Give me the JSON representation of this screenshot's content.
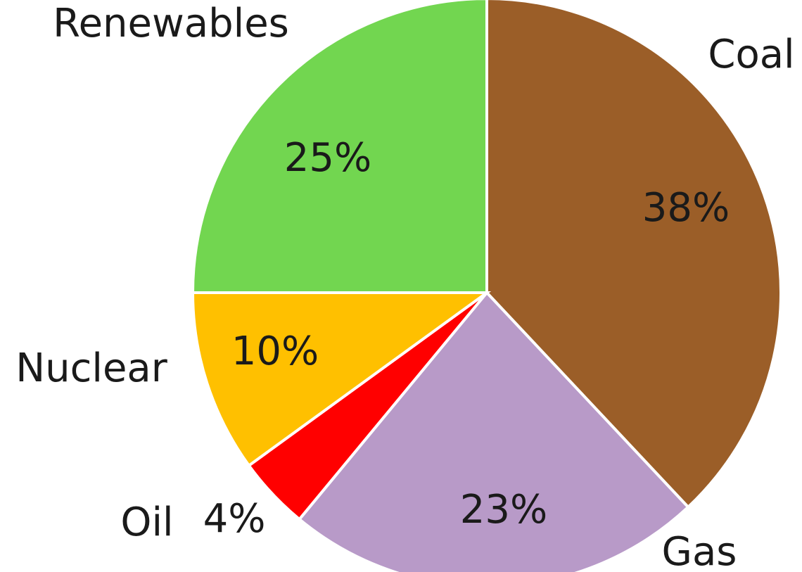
{
  "chart_data": {
    "type": "pie",
    "title": "",
    "slices": [
      {
        "name": "Coal",
        "value": 38,
        "value_label": "38%",
        "color": "#9b5e28"
      },
      {
        "name": "Gas",
        "value": 23,
        "value_label": "23%",
        "color": "#b89ac8"
      },
      {
        "name": "Oil",
        "value": 4,
        "value_label": "4%",
        "color": "#ff0000"
      },
      {
        "name": "Nuclear",
        "value": 10,
        "value_label": "10%",
        "color": "#ffc000"
      },
      {
        "name": "Renewables",
        "value": 25,
        "value_label": "25%",
        "color": "#72d650"
      }
    ],
    "start": "12 o'clock",
    "direction": "clockwise",
    "legend": "none"
  }
}
